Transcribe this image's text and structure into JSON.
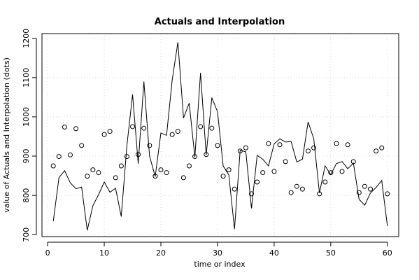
{
  "chart_data": {
    "type": "line",
    "title": "Actuals and Interpolation",
    "xlabel": "time or index",
    "ylabel": "value of Actuals and Interpolation (dots)",
    "xlim": [
      -1,
      62
    ],
    "ylim": [
      695,
      1212
    ],
    "x_ticks": [
      0,
      10,
      20,
      30,
      40,
      50,
      60
    ],
    "y_ticks": [
      700,
      800,
      900,
      1000,
      1100,
      1200
    ],
    "grid": true,
    "legend": "none",
    "x": [
      1,
      2,
      3,
      4,
      5,
      6,
      7,
      8,
      9,
      10,
      11,
      12,
      13,
      14,
      15,
      16,
      17,
      18,
      19,
      20,
      21,
      22,
      23,
      24,
      25,
      26,
      27,
      28,
      29,
      30,
      31,
      32,
      33,
      34,
      35,
      36,
      37,
      38,
      39,
      40,
      41,
      42,
      43,
      44,
      45,
      46,
      47,
      48,
      49,
      50,
      51,
      52,
      53,
      54,
      55,
      56,
      57,
      58,
      59,
      60
    ],
    "series": [
      {
        "style": "line",
        "values": [
          734,
          845,
          863,
          832,
          817,
          821,
          711,
          774,
          802,
          834,
          808,
          818,
          746,
          927,
          1057,
          881,
          1090,
          900,
          848,
          959,
          953,
          1094,
          1190,
          997,
          1035,
          897,
          1112,
          903,
          1049,
          1013,
          875,
          852,
          714,
          915,
          911,
          767,
          902,
          892,
          875,
          931,
          944,
          936,
          937,
          885,
          892,
          987,
          944,
          806,
          875,
          853,
          881,
          886,
          868,
          882,
          790,
          775,
          806,
          820,
          838,
          722
        ]
      },
      {
        "style": "points",
        "values": [
          875,
          899,
          974,
          903,
          970,
          927,
          849,
          865,
          858,
          955,
          963,
          845,
          875,
          899,
          975,
          904,
          971,
          927,
          849,
          865,
          858,
          955,
          963,
          845,
          875,
          899,
          975,
          904,
          971,
          927,
          849,
          865,
          816,
          913,
          921,
          804,
          834,
          858,
          932,
          861,
          929,
          886,
          807,
          823,
          816,
          913,
          921,
          804,
          834,
          858,
          932,
          861,
          929,
          886,
          807,
          823,
          816,
          913,
          921,
          804
        ]
      }
    ]
  }
}
